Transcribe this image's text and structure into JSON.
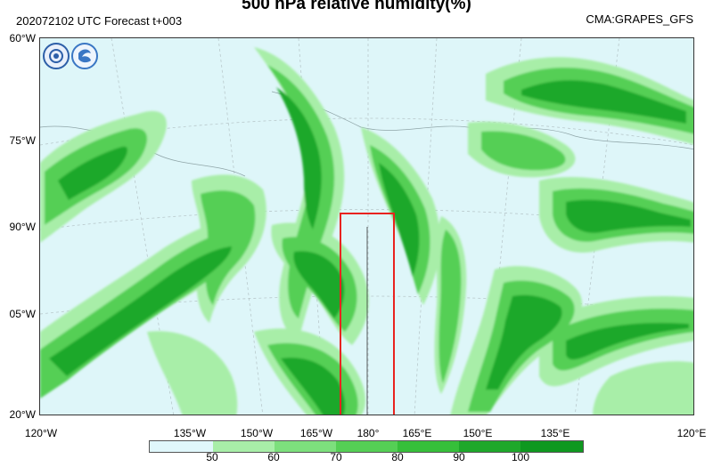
{
  "header": {
    "title": "500 hPa relative humidity(%)",
    "forecast_label": "202072102 UTC Forecast t+003",
    "source_label": "CMA:GRAPES_GFS"
  },
  "map": {
    "lat_labels": [
      "60°W",
      "75°W",
      "90°W",
      "05°W",
      "20°W"
    ],
    "lon_labels": [
      "120°W",
      "135°W",
      "150°W",
      "165°W",
      "180°",
      "165°E",
      "150°E",
      "135°E",
      "120°E"
    ],
    "highlight_box": {
      "color": "#e8231f",
      "description": ""
    }
  },
  "logos": [
    {
      "name": "cma-logo-icon",
      "color": "#2d5fa8"
    },
    {
      "name": "nmc-logo-icon",
      "color": "#3a77c4"
    }
  ],
  "colorbar": {
    "levels": [
      "50",
      "60",
      "70",
      "80",
      "90",
      "100"
    ],
    "colors": [
      "#e0f7fb",
      "#a8eea8",
      "#7ddf7d",
      "#55cf55",
      "#36bf3a",
      "#1ea82a",
      "#0f9820"
    ]
  }
}
